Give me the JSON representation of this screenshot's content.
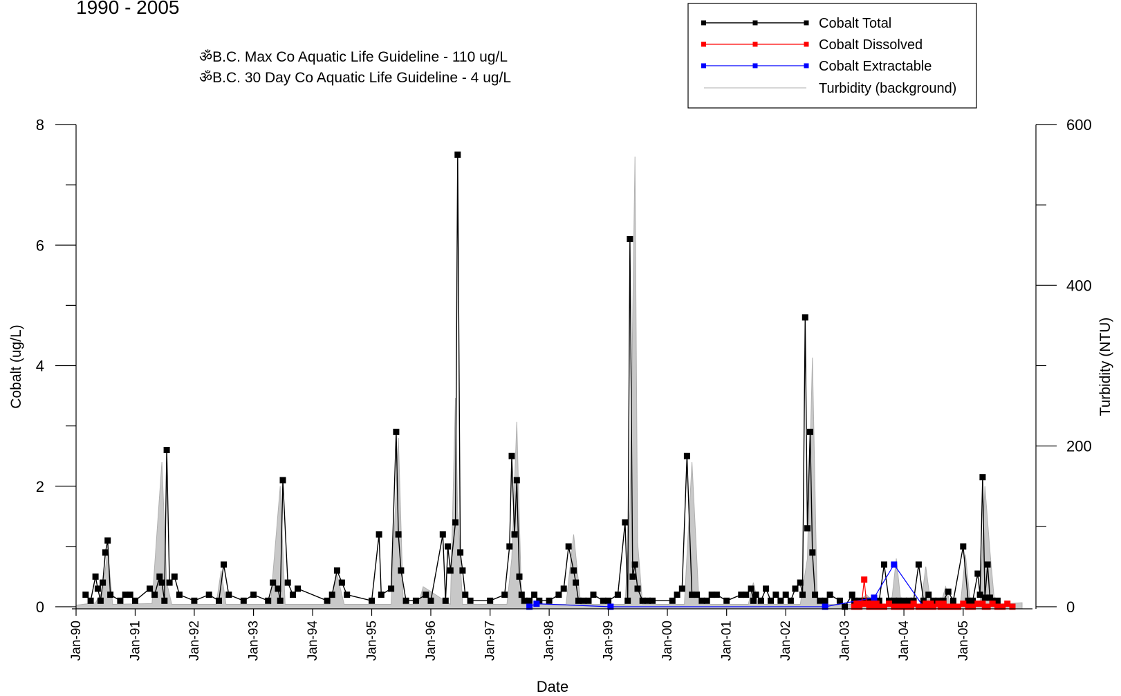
{
  "chart_data": {
    "type": "line",
    "title": "1990 - 2005",
    "xlabel": "Date",
    "ylabel": "Cobalt (ug/L)",
    "y2label": "Turbidity (NTU)",
    "ylim": [
      0,
      8
    ],
    "y2lim": [
      0,
      600
    ],
    "xlim": [
      "1990-01-01",
      "2005-12-31"
    ],
    "x_ticks": [
      "Jan-90",
      "Jan-91",
      "Jan-92",
      "Jan-93",
      "Jan-94",
      "Jan-95",
      "Jan-96",
      "Jan-97",
      "Jan-98",
      "Jan-99",
      "Jan-00",
      "Jan-01",
      "Jan-02",
      "Jan-03",
      "Jan-04",
      "Jan-05"
    ],
    "y_ticks": [
      "0",
      "2",
      "4",
      "6",
      "8"
    ],
    "y2_ticks": [
      "0",
      "200",
      "400",
      "600"
    ],
    "legend_position": "top-right",
    "guidelines": [
      "ॐB.C. Max Co Aquatic Life Guideline - 110 ug/L",
      "ॐB.C. 30 Day Co Aquatic Life Guideline - 4 ug/L"
    ],
    "colors": {
      "total": "#000000",
      "dissolved": "#ff0000",
      "extractable": "#0000ff",
      "turbidity": "#bdbdbd"
    },
    "series": [
      {
        "name": "Cobalt Total",
        "axis": "left",
        "x": [
          "1990-03-01",
          "1990-04-01",
          "1990-05-01",
          "1990-05-15",
          "1990-06-01",
          "1990-06-15",
          "1990-07-01",
          "1990-07-15",
          "1990-08-01",
          "1990-10-01",
          "1990-11-01",
          "1990-12-01",
          "1991-01-01",
          "1991-04-01",
          "1991-05-01",
          "1991-06-01",
          "1991-06-15",
          "1991-07-01",
          "1991-07-15",
          "1991-08-01",
          "1991-09-01",
          "1991-10-01",
          "1992-01-01",
          "1992-04-01",
          "1992-06-01",
          "1992-07-01",
          "1992-08-01",
          "1992-11-01",
          "1993-01-01",
          "1993-04-01",
          "1993-05-01",
          "1993-06-01",
          "1993-06-15",
          "1993-07-01",
          "1993-08-01",
          "1993-09-01",
          "1993-10-01",
          "1994-04-01",
          "1994-05-01",
          "1994-06-01",
          "1994-07-01",
          "1994-08-01",
          "1995-01-01",
          "1995-02-15",
          "1995-03-01",
          "1995-05-01",
          "1995-06-01",
          "1995-06-15",
          "1995-07-01",
          "1995-08-01",
          "1995-10-01",
          "1995-12-01",
          "1996-01-01",
          "1996-03-15",
          "1996-04-01",
          "1996-04-15",
          "1996-05-01",
          "1996-06-01",
          "1996-06-15",
          "1996-07-01",
          "1996-07-15",
          "1996-08-01",
          "1996-09-01",
          "1997-01-01",
          "1997-04-01",
          "1997-05-01",
          "1997-05-15",
          "1997-06-01",
          "1997-06-15",
          "1997-07-01",
          "1997-07-15",
          "1997-08-01",
          "1997-09-01",
          "1997-10-01",
          "1997-11-01",
          "1998-01-01",
          "1998-03-01",
          "1998-04-01",
          "1998-05-01",
          "1998-06-01",
          "1998-06-15",
          "1998-07-01",
          "1998-08-01",
          "1998-09-01",
          "1998-10-01",
          "1998-12-01",
          "1999-01-01",
          "1999-03-01",
          "1999-04-15",
          "1999-05-01",
          "1999-05-15",
          "1999-06-01",
          "1999-06-15",
          "1999-07-01",
          "1999-08-01",
          "1999-09-01",
          "1999-10-01",
          "2000-02-01",
          "2000-03-01",
          "2000-04-01",
          "2000-05-01",
          "2000-06-01",
          "2000-07-01",
          "2000-08-01",
          "2000-09-01",
          "2000-10-01",
          "2000-11-01",
          "2001-01-01",
          "2001-04-01",
          "2001-05-01",
          "2001-06-01",
          "2001-06-15",
          "2001-07-01",
          "2001-08-01",
          "2001-09-01",
          "2001-10-01",
          "2001-11-01",
          "2001-12-01",
          "2002-01-01",
          "2002-02-01",
          "2002-03-01",
          "2002-04-01",
          "2002-04-15",
          "2002-05-01",
          "2002-05-15",
          "2002-06-01",
          "2002-06-15",
          "2002-07-01",
          "2002-08-01",
          "2002-09-01",
          "2002-10-01",
          "2002-12-01",
          "2003-01-01",
          "2003-02-15",
          "2003-03-01",
          "2003-04-01",
          "2003-05-01",
          "2003-06-01",
          "2003-07-01",
          "2003-08-01",
          "2003-09-01",
          "2003-10-01",
          "2003-11-01",
          "2003-12-01",
          "2004-01-01",
          "2004-02-01",
          "2004-03-01",
          "2004-04-01",
          "2004-05-01",
          "2004-06-01",
          "2004-07-01",
          "2004-08-01",
          "2004-09-01",
          "2004-10-01",
          "2004-11-01",
          "2005-01-01",
          "2005-02-01",
          "2005-03-01",
          "2005-04-01",
          "2005-04-15",
          "2005-05-01",
          "2005-05-15",
          "2005-06-01",
          "2005-06-15",
          "2005-07-01",
          "2005-08-01"
        ],
        "values": [
          0.2,
          0.1,
          0.5,
          0.3,
          0.1,
          0.4,
          0.9,
          1.1,
          0.2,
          0.1,
          0.2,
          0.2,
          0.1,
          0.3,
          0.2,
          0.5,
          0.4,
          0.1,
          2.6,
          0.4,
          0.5,
          0.2,
          0.1,
          0.2,
          0.1,
          0.7,
          0.2,
          0.1,
          0.2,
          0.1,
          0.4,
          0.3,
          0.1,
          2.1,
          0.4,
          0.2,
          0.3,
          0.1,
          0.2,
          0.6,
          0.4,
          0.2,
          0.1,
          1.2,
          0.2,
          0.3,
          2.9,
          1.2,
          0.6,
          0.1,
          0.1,
          0.2,
          0.1,
          1.2,
          0.1,
          1.0,
          0.6,
          1.4,
          7.5,
          0.9,
          0.6,
          0.2,
          0.1,
          0.1,
          0.2,
          1.0,
          2.5,
          1.2,
          2.1,
          0.5,
          0.2,
          0.1,
          0.1,
          0.2,
          0.1,
          0.1,
          0.2,
          0.3,
          1.0,
          0.6,
          0.4,
          0.1,
          0.1,
          0.1,
          0.2,
          0.1,
          0.1,
          0.2,
          1.4,
          0.1,
          6.1,
          0.5,
          0.7,
          0.3,
          0.1,
          0.1,
          0.1,
          0.1,
          0.2,
          0.3,
          2.5,
          0.2,
          0.2,
          0.1,
          0.1,
          0.2,
          0.2,
          0.1,
          0.2,
          0.2,
          0.3,
          0.1,
          0.2,
          0.1,
          0.3,
          0.1,
          0.2,
          0.1,
          0.2,
          0.1,
          0.3,
          0.4,
          0.2,
          4.8,
          1.3,
          2.9,
          0.9,
          0.2,
          0.1,
          0.1,
          0.2,
          0.1,
          0.0,
          0.2,
          0.1,
          0.1,
          0.1,
          0.1,
          0.1,
          0.1,
          0.7,
          0.1,
          0.1,
          0.1,
          0.1,
          0.1,
          0.1,
          0.7,
          0.1,
          0.2,
          0.1,
          0.1,
          0.1,
          0.25,
          0.1,
          1.0,
          0.1,
          0.1,
          0.55,
          0.2,
          2.15,
          0.15,
          0.7,
          0.15,
          0.1,
          0.1
        ]
      },
      {
        "name": "Cobalt Dissolved",
        "axis": "left",
        "x": [
          "2003-03-01",
          "2003-03-15",
          "2003-04-01",
          "2003-04-15",
          "2003-05-01",
          "2003-05-15",
          "2003-06-01",
          "2003-06-15",
          "2003-07-01",
          "2003-07-15",
          "2003-08-01",
          "2003-09-01",
          "2003-10-01",
          "2003-11-01",
          "2003-12-01",
          "2004-01-01",
          "2004-01-15",
          "2004-02-01",
          "2004-02-15",
          "2004-03-01",
          "2004-04-01",
          "2004-05-01",
          "2004-05-15",
          "2004-06-01",
          "2004-06-15",
          "2004-07-01",
          "2004-08-01",
          "2004-08-15",
          "2004-09-01",
          "2004-09-15",
          "2004-10-01",
          "2004-11-01",
          "2004-12-01",
          "2005-01-01",
          "2005-02-01",
          "2005-03-01",
          "2005-04-01",
          "2005-05-01",
          "2005-05-15",
          "2005-06-01",
          "2005-07-01",
          "2005-08-01",
          "2005-09-01",
          "2005-10-01",
          "2005-11-01"
        ],
        "values": [
          0.0,
          0.05,
          0.0,
          0.05,
          0.45,
          0.05,
          0.0,
          0.05,
          0.0,
          0.05,
          0.0,
          0.0,
          0.05,
          0.0,
          0.0,
          0.0,
          0.0,
          0.0,
          0.0,
          0.05,
          0.0,
          0.0,
          0.05,
          0.0,
          0.05,
          0.0,
          0.05,
          0.0,
          0.05,
          0.0,
          0.0,
          0.0,
          0.0,
          0.05,
          0.0,
          0.0,
          0.05,
          0.05,
          0.0,
          0.0,
          0.05,
          0.0,
          0.0,
          0.05,
          0.0
        ]
      },
      {
        "name": "Cobalt Extractable",
        "axis": "left",
        "x": [
          "1997-09-01",
          "1997-10-15",
          "1999-01-15",
          "2002-09-01",
          "2003-07-01",
          "2003-11-01",
          "2004-05-01"
        ],
        "values": [
          0.0,
          0.05,
          0.0,
          0.0,
          0.15,
          0.7,
          0.0
        ]
      },
      {
        "name": "Turbidity (background)",
        "axis": "right",
        "x": [
          "1990-01-01",
          "1990-05-01",
          "1990-06-15",
          "1990-07-15",
          "1990-08-15",
          "1991-04-15",
          "1991-06-15",
          "1991-07-15",
          "1991-08-15",
          "1992-05-15",
          "1992-06-15",
          "1992-07-15",
          "1993-04-15",
          "1993-06-15",
          "1993-07-15",
          "1994-04-15",
          "1994-06-01",
          "1994-07-15",
          "1995-05-01",
          "1995-06-15",
          "1995-07-15",
          "1995-10-15",
          "1995-11-15",
          "1996-05-01",
          "1996-06-01",
          "1996-06-15",
          "1996-07-15",
          "1996-10-15",
          "1996-11-15",
          "1997-04-15",
          "1997-05-15",
          "1997-06-15",
          "1997-07-15",
          "1998-04-15",
          "1998-06-01",
          "1998-07-15",
          "1999-04-15",
          "1999-05-15",
          "1999-06-15",
          "1999-07-01",
          "1999-08-01",
          "2000-04-15",
          "2000-06-01",
          "2000-07-15",
          "2001-05-15",
          "2001-06-15",
          "2001-07-15",
          "2002-04-01",
          "2002-05-15",
          "2002-06-15",
          "2002-07-15",
          "2003-03-01",
          "2003-05-15",
          "2003-07-15",
          "2003-10-15",
          "2003-11-15",
          "2003-12-15",
          "2004-04-15",
          "2004-05-15",
          "2004-06-15",
          "2004-08-15",
          "2004-09-15",
          "2004-10-15",
          "2004-12-15",
          "2005-01-15",
          "2005-02-15",
          "2005-04-15",
          "2005-05-15",
          "2005-06-15",
          "2005-07-15",
          "2005-12-31"
        ],
        "values": [
          2,
          5,
          20,
          70,
          3,
          4,
          180,
          30,
          3,
          3,
          45,
          3,
          3,
          150,
          3,
          3,
          40,
          3,
          3,
          210,
          3,
          3,
          25,
          3,
          260,
          120,
          3,
          3,
          3,
          3,
          60,
          230,
          3,
          3,
          90,
          3,
          3,
          120,
          560,
          80,
          3,
          3,
          180,
          3,
          3,
          30,
          3,
          3,
          60,
          310,
          3,
          3,
          15,
          3,
          3,
          60,
          3,
          3,
          50,
          3,
          3,
          25,
          3,
          3,
          65,
          3,
          3,
          150,
          70,
          3,
          5
        ]
      }
    ]
  }
}
